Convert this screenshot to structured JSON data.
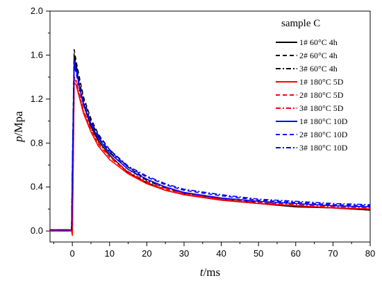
{
  "chart_data": {
    "type": "line",
    "xlabel_symbol": "t",
    "xlabel_unit": "/ms",
    "ylabel_symbol": "p",
    "ylabel_unit": "/Mpa",
    "xlim": [
      -6,
      80
    ],
    "ylim": [
      -0.1,
      2.0
    ],
    "x_ticks": [
      0,
      10,
      20,
      30,
      40,
      50,
      60,
      70,
      80
    ],
    "y_ticks": [
      0.0,
      0.4,
      0.8,
      1.2,
      1.6,
      2.0
    ],
    "y_tick_labels": [
      "0.0",
      "0.4",
      "0.8",
      "1.2",
      "1.6",
      "2.0"
    ],
    "legend_title": "sample C",
    "legend_position": "top-right",
    "series": [
      {
        "name": "1# 60°C 4h",
        "color": "#000000",
        "dash": "solid",
        "x": [
          -6,
          -0.2,
          0,
          0.5,
          1,
          2,
          3,
          5,
          7,
          10,
          15,
          20,
          25,
          30,
          40,
          50,
          60,
          70,
          80
        ],
        "y": [
          0.01,
          0.01,
          0.5,
          1.58,
          1.5,
          1.3,
          1.15,
          0.95,
          0.82,
          0.69,
          0.53,
          0.44,
          0.37,
          0.33,
          0.28,
          0.25,
          0.22,
          0.21,
          0.19
        ]
      },
      {
        "name": "2# 60°C 4h",
        "color": "#000000",
        "dash": "dash",
        "x": [
          -6,
          -0.2,
          0,
          0.5,
          1,
          2,
          3,
          5,
          7,
          10,
          15,
          20,
          25,
          30,
          40,
          50,
          60,
          70,
          80
        ],
        "y": [
          0.01,
          0.01,
          0.6,
          1.65,
          1.55,
          1.38,
          1.22,
          1.02,
          0.88,
          0.74,
          0.58,
          0.47,
          0.4,
          0.35,
          0.29,
          0.26,
          0.23,
          0.21,
          0.2
        ]
      },
      {
        "name": "3# 60°C 4h",
        "color": "#000000",
        "dash": "dashdot",
        "x": [
          -6,
          -0.2,
          0,
          0.5,
          1,
          2,
          3,
          5,
          7,
          10,
          15,
          20,
          25,
          30,
          40,
          50,
          60,
          70,
          80
        ],
        "y": [
          0.01,
          0.01,
          0.55,
          1.6,
          1.52,
          1.34,
          1.2,
          1.0,
          0.86,
          0.72,
          0.56,
          0.46,
          0.39,
          0.34,
          0.29,
          0.25,
          0.23,
          0.21,
          0.19
        ]
      },
      {
        "name": "1# 180°C 5D",
        "color": "#ff0000",
        "dash": "solid",
        "x": [
          -6,
          -0.2,
          0,
          0.5,
          1,
          2,
          3,
          5,
          7,
          10,
          15,
          20,
          25,
          30,
          40,
          50,
          60,
          70,
          80
        ],
        "y": [
          0.0,
          0.0,
          -0.04,
          1.35,
          1.33,
          1.2,
          1.07,
          0.9,
          0.77,
          0.65,
          0.52,
          0.43,
          0.37,
          0.33,
          0.28,
          0.25,
          0.23,
          0.21,
          0.2
        ]
      },
      {
        "name": "2# 180°C 5D",
        "color": "#ff0000",
        "dash": "dash",
        "x": [
          -6,
          -0.2,
          0,
          0.5,
          1,
          2,
          3,
          5,
          7,
          10,
          15,
          20,
          25,
          30,
          40,
          50,
          60,
          70,
          80
        ],
        "y": [
          0.0,
          0.0,
          -0.03,
          1.38,
          1.36,
          1.22,
          1.09,
          0.92,
          0.79,
          0.67,
          0.53,
          0.44,
          0.38,
          0.34,
          0.29,
          0.25,
          0.23,
          0.21,
          0.2
        ]
      },
      {
        "name": "3# 180°C 5D",
        "color": "#ff0000",
        "dash": "dashdot",
        "x": [
          -6,
          -0.2,
          0,
          0.5,
          1,
          2,
          3,
          5,
          7,
          10,
          15,
          20,
          25,
          30,
          40,
          50,
          60,
          70,
          80
        ],
        "y": [
          0.0,
          0.0,
          -0.02,
          1.4,
          1.38,
          1.24,
          1.1,
          0.93,
          0.8,
          0.68,
          0.54,
          0.45,
          0.39,
          0.34,
          0.29,
          0.26,
          0.24,
          0.22,
          0.21
        ]
      },
      {
        "name": "1# 180°C 10D",
        "color": "#0000ff",
        "dash": "solid",
        "x": [
          -6,
          -0.2,
          0,
          0.5,
          1,
          2,
          3,
          5,
          7,
          10,
          15,
          20,
          25,
          30,
          40,
          50,
          60,
          70,
          80
        ],
        "y": [
          0.01,
          0.01,
          0.5,
          1.55,
          1.47,
          1.3,
          1.16,
          0.97,
          0.84,
          0.71,
          0.56,
          0.47,
          0.4,
          0.35,
          0.3,
          0.27,
          0.25,
          0.23,
          0.22
        ]
      },
      {
        "name": "2# 180°C 10D",
        "color": "#0000ff",
        "dash": "dash",
        "x": [
          -6,
          -0.2,
          0,
          0.5,
          1,
          2,
          3,
          5,
          7,
          10,
          15,
          20,
          25,
          30,
          40,
          50,
          60,
          70,
          80
        ],
        "y": [
          0.01,
          0.01,
          0.5,
          1.5,
          1.44,
          1.28,
          1.15,
          0.97,
          0.85,
          0.73,
          0.58,
          0.49,
          0.42,
          0.37,
          0.32,
          0.28,
          0.26,
          0.24,
          0.23
        ]
      },
      {
        "name": "3# 180°C 10D",
        "color": "#0000ff",
        "dash": "dashdot",
        "x": [
          -6,
          -0.2,
          0,
          0.5,
          1,
          2,
          3,
          5,
          7,
          10,
          15,
          20,
          25,
          30,
          40,
          50,
          60,
          70,
          80
        ],
        "y": [
          0.01,
          0.01,
          0.5,
          1.52,
          1.46,
          1.3,
          1.17,
          0.99,
          0.87,
          0.74,
          0.59,
          0.5,
          0.43,
          0.38,
          0.33,
          0.29,
          0.27,
          0.25,
          0.24
        ]
      }
    ]
  }
}
